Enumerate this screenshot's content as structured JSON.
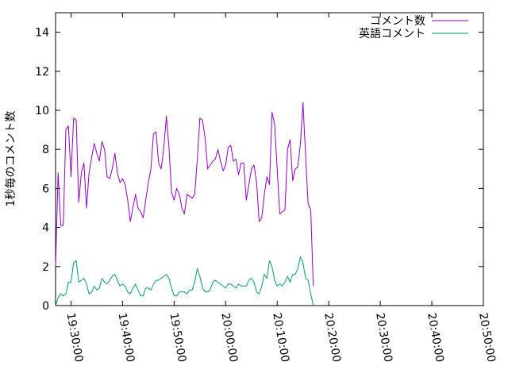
{
  "chart_data": {
    "type": "line",
    "title": "",
    "xlabel": "",
    "ylabel": "1秒毎のコメント数",
    "xlim": [
      "19:27:00",
      "20:50:00"
    ],
    "ylim": [
      0,
      15
    ],
    "xticks": [
      "19:30:00",
      "19:40:00",
      "19:50:00",
      "20:00:00",
      "20:10:00",
      "20:20:00",
      "20:30:00",
      "20:40:00",
      "20:50:00"
    ],
    "yticks": [
      0,
      2,
      4,
      6,
      8,
      10,
      12,
      14
    ],
    "grid": false,
    "legend_position": "top-right",
    "series": [
      {
        "name": "コメント数",
        "color": "#9400d3",
        "points": [
          [
            "19:27:00",
            2.0
          ],
          [
            "19:27:30",
            6.8
          ],
          [
            "19:28:00",
            4.1
          ],
          [
            "19:28:30",
            4.1
          ],
          [
            "19:29:00",
            9.0
          ],
          [
            "19:29:30",
            9.2
          ],
          [
            "19:30:00",
            6.6
          ],
          [
            "19:30:30",
            9.6
          ],
          [
            "19:31:00",
            9.5
          ],
          [
            "19:31:30",
            5.3
          ],
          [
            "19:32:00",
            6.8
          ],
          [
            "19:32:30",
            7.3
          ],
          [
            "19:33:00",
            5.0
          ],
          [
            "19:33:30",
            6.8
          ],
          [
            "19:34:00",
            7.6
          ],
          [
            "19:34:30",
            8.3
          ],
          [
            "19:35:00",
            7.8
          ],
          [
            "19:35:30",
            7.4
          ],
          [
            "19:36:00",
            8.4
          ],
          [
            "19:36:30",
            8.0
          ],
          [
            "19:37:00",
            6.6
          ],
          [
            "19:37:30",
            6.5
          ],
          [
            "19:38:00",
            7.0
          ],
          [
            "19:38:30",
            7.8
          ],
          [
            "19:39:00",
            6.8
          ],
          [
            "19:39:30",
            6.3
          ],
          [
            "19:40:00",
            6.5
          ],
          [
            "19:40:30",
            6.2
          ],
          [
            "19:41:00",
            5.4
          ],
          [
            "19:41:30",
            4.3
          ],
          [
            "19:42:00",
            5.0
          ],
          [
            "19:42:30",
            5.7
          ],
          [
            "19:43:00",
            5.0
          ],
          [
            "19:43:30",
            4.8
          ],
          [
            "19:44:00",
            4.5
          ],
          [
            "19:44:30",
            5.4
          ],
          [
            "19:45:00",
            6.3
          ],
          [
            "19:45:30",
            7.0
          ],
          [
            "19:46:00",
            8.8
          ],
          [
            "19:46:30",
            8.9
          ],
          [
            "19:47:00",
            7.3
          ],
          [
            "19:47:30",
            7.0
          ],
          [
            "19:48:00",
            8.1
          ],
          [
            "19:48:30",
            9.7
          ],
          [
            "19:49:00",
            8.1
          ],
          [
            "19:49:30",
            5.8
          ],
          [
            "19:50:00",
            5.4
          ],
          [
            "19:50:30",
            6.0
          ],
          [
            "19:51:00",
            5.7
          ],
          [
            "19:51:30",
            5.0
          ],
          [
            "19:52:00",
            4.7
          ],
          [
            "19:52:30",
            5.7
          ],
          [
            "19:53:00",
            5.6
          ],
          [
            "19:53:30",
            5.5
          ],
          [
            "19:54:00",
            5.7
          ],
          [
            "19:54:30",
            7.5
          ],
          [
            "19:55:00",
            9.6
          ],
          [
            "19:55:30",
            9.5
          ],
          [
            "19:56:00",
            8.6
          ],
          [
            "19:56:30",
            7.0
          ],
          [
            "19:57:00",
            7.2
          ],
          [
            "19:57:30",
            7.4
          ],
          [
            "19:58:00",
            7.5
          ],
          [
            "19:58:30",
            8.0
          ],
          [
            "19:59:00",
            7.4
          ],
          [
            "19:59:30",
            6.9
          ],
          [
            "20:00:00",
            7.2
          ],
          [
            "20:00:30",
            8.1
          ],
          [
            "20:01:00",
            8.2
          ],
          [
            "20:01:30",
            7.4
          ],
          [
            "20:02:00",
            7.5
          ],
          [
            "20:02:30",
            6.7
          ],
          [
            "20:03:00",
            7.3
          ],
          [
            "20:03:30",
            7.3
          ],
          [
            "20:04:00",
            5.4
          ],
          [
            "20:04:30",
            6.2
          ],
          [
            "20:05:00",
            7.0
          ],
          [
            "20:05:30",
            7.2
          ],
          [
            "20:06:00",
            6.3
          ],
          [
            "20:06:30",
            4.3
          ],
          [
            "20:07:00",
            4.5
          ],
          [
            "20:07:30",
            5.7
          ],
          [
            "20:08:00",
            6.6
          ],
          [
            "20:08:30",
            6.2
          ],
          [
            "20:09:00",
            9.9
          ],
          [
            "20:09:30",
            9.3
          ],
          [
            "20:10:00",
            7.0
          ],
          [
            "20:10:30",
            4.7
          ],
          [
            "20:11:00",
            4.8
          ],
          [
            "20:11:30",
            4.9
          ],
          [
            "20:12:00",
            8.0
          ],
          [
            "20:12:30",
            8.5
          ],
          [
            "20:13:00",
            6.4
          ],
          [
            "20:13:30",
            7.0
          ],
          [
            "20:14:00",
            7.1
          ],
          [
            "20:14:30",
            8.3
          ],
          [
            "20:15:00",
            10.4
          ],
          [
            "20:15:30",
            7.7
          ],
          [
            "20:16:00",
            5.2
          ],
          [
            "20:16:30",
            4.9
          ],
          [
            "20:17:00",
            1.0
          ]
        ]
      },
      {
        "name": "英語コメント",
        "color": "#009e73",
        "points": [
          [
            "19:27:00",
            0.0
          ],
          [
            "19:27:30",
            0.4
          ],
          [
            "19:28:00",
            0.6
          ],
          [
            "19:28:30",
            0.5
          ],
          [
            "19:29:00",
            0.6
          ],
          [
            "19:29:30",
            1.2
          ],
          [
            "19:30:00",
            1.2
          ],
          [
            "19:30:30",
            2.2
          ],
          [
            "19:31:00",
            2.3
          ],
          [
            "19:31:30",
            1.2
          ],
          [
            "19:32:00",
            1.3
          ],
          [
            "19:32:30",
            1.4
          ],
          [
            "19:33:00",
            1.1
          ],
          [
            "19:33:30",
            0.6
          ],
          [
            "19:34:00",
            0.7
          ],
          [
            "19:34:30",
            1.0
          ],
          [
            "19:35:00",
            0.8
          ],
          [
            "19:35:30",
            0.9
          ],
          [
            "19:36:00",
            1.4
          ],
          [
            "19:36:30",
            1.2
          ],
          [
            "19:37:00",
            1.1
          ],
          [
            "19:37:30",
            1.3
          ],
          [
            "19:38:00",
            1.5
          ],
          [
            "19:38:30",
            1.6
          ],
          [
            "19:39:00",
            1.3
          ],
          [
            "19:39:30",
            1.0
          ],
          [
            "19:40:00",
            1.1
          ],
          [
            "19:40:30",
            1.0
          ],
          [
            "19:41:00",
            0.7
          ],
          [
            "19:41:30",
            0.6
          ],
          [
            "19:42:00",
            0.9
          ],
          [
            "19:42:30",
            1.1
          ],
          [
            "19:43:00",
            0.8
          ],
          [
            "19:43:30",
            0.5
          ],
          [
            "19:44:00",
            0.5
          ],
          [
            "19:44:30",
            0.9
          ],
          [
            "19:45:00",
            0.9
          ],
          [
            "19:45:30",
            0.8
          ],
          [
            "19:46:00",
            1.1
          ],
          [
            "19:46:30",
            1.3
          ],
          [
            "19:47:00",
            1.3
          ],
          [
            "19:47:30",
            1.4
          ],
          [
            "19:48:00",
            1.5
          ],
          [
            "19:48:30",
            1.6
          ],
          [
            "19:49:00",
            1.4
          ],
          [
            "19:49:30",
            0.9
          ],
          [
            "19:50:00",
            0.5
          ],
          [
            "19:50:30",
            0.5
          ],
          [
            "19:51:00",
            0.7
          ],
          [
            "19:51:30",
            0.7
          ],
          [
            "19:52:00",
            0.7
          ],
          [
            "19:52:30",
            0.6
          ],
          [
            "19:53:00",
            0.8
          ],
          [
            "19:53:30",
            0.8
          ],
          [
            "19:54:00",
            1.2
          ],
          [
            "19:54:30",
            1.9
          ],
          [
            "19:55:00",
            1.5
          ],
          [
            "19:55:30",
            0.9
          ],
          [
            "19:56:00",
            0.7
          ],
          [
            "19:56:30",
            0.7
          ],
          [
            "19:57:00",
            0.8
          ],
          [
            "19:57:30",
            1.2
          ],
          [
            "19:58:00",
            1.3
          ],
          [
            "19:58:30",
            1.2
          ],
          [
            "19:59:00",
            1.1
          ],
          [
            "19:59:30",
            1.0
          ],
          [
            "20:00:00",
            0.9
          ],
          [
            "20:00:30",
            1.1
          ],
          [
            "20:01:00",
            1.1
          ],
          [
            "20:01:30",
            1.0
          ],
          [
            "20:02:00",
            0.9
          ],
          [
            "20:02:30",
            1.1
          ],
          [
            "20:03:00",
            1.0
          ],
          [
            "20:03:30",
            1.0
          ],
          [
            "20:04:00",
            1.0
          ],
          [
            "20:04:30",
            1.3
          ],
          [
            "20:05:00",
            1.4
          ],
          [
            "20:05:30",
            1.2
          ],
          [
            "20:06:00",
            0.7
          ],
          [
            "20:06:30",
            0.6
          ],
          [
            "20:07:00",
            1.0
          ],
          [
            "20:07:30",
            1.6
          ],
          [
            "20:08:00",
            1.4
          ],
          [
            "20:08:30",
            2.3
          ],
          [
            "20:09:00",
            2.0
          ],
          [
            "20:09:30",
            1.3
          ],
          [
            "20:10:00",
            1.0
          ],
          [
            "20:10:30",
            1.1
          ],
          [
            "20:11:00",
            1.0
          ],
          [
            "20:11:30",
            1.2
          ],
          [
            "20:12:00",
            1.5
          ],
          [
            "20:12:30",
            1.2
          ],
          [
            "20:13:00",
            1.6
          ],
          [
            "20:13:30",
            1.6
          ],
          [
            "20:14:00",
            1.9
          ],
          [
            "20:14:30",
            2.5
          ],
          [
            "20:15:00",
            2.2
          ],
          [
            "20:15:30",
            1.4
          ],
          [
            "20:16:00",
            1.3
          ],
          [
            "20:16:30",
            0.6
          ],
          [
            "20:17:00",
            0.0
          ]
        ]
      }
    ]
  }
}
